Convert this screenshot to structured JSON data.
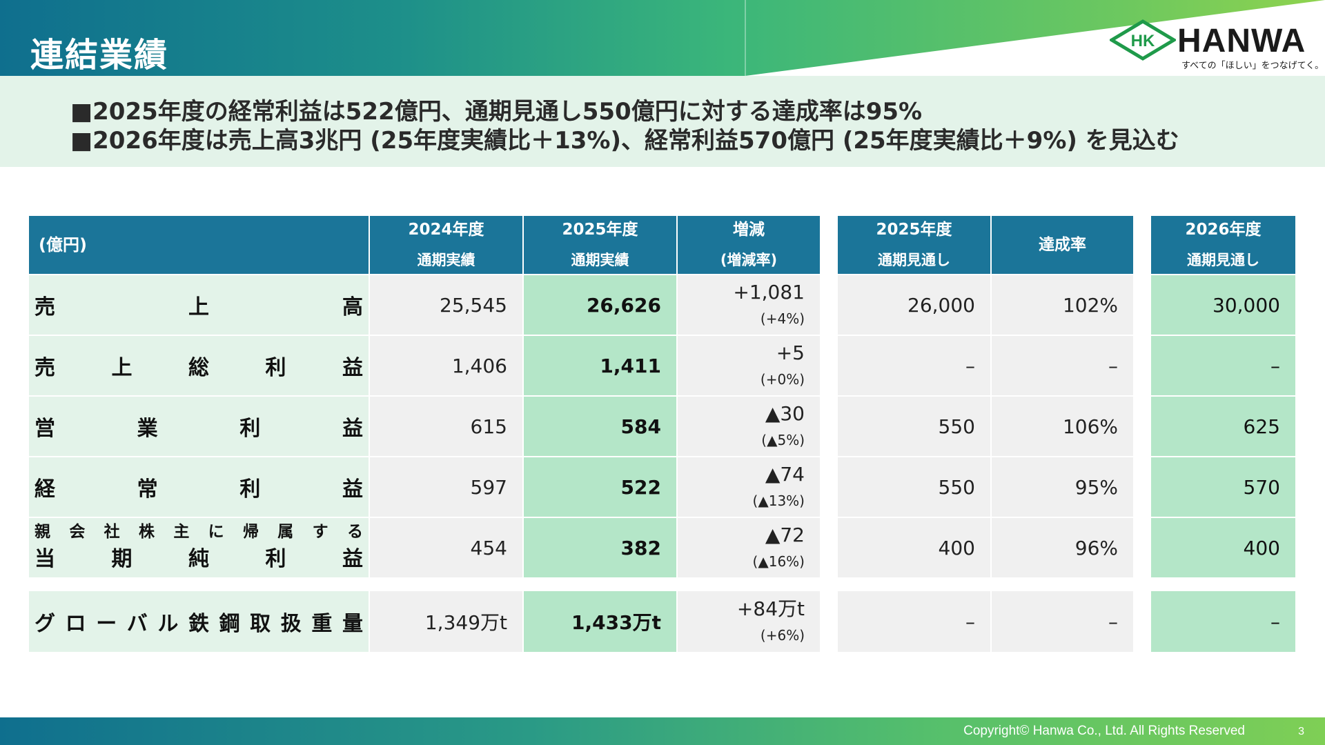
{
  "header": {
    "title": "連結業績",
    "logo_mark": "HK",
    "logo_name": "HANWA",
    "logo_tagline": "すべての「ほしい」をつなげてく。"
  },
  "summary": {
    "line1": "■2025年度の経常利益は522億円、通期見通し550億円に対する達成率は95%",
    "line2": "■2026年度は売上高3兆円 (25年度実績比＋13%)、経常利益570億円 (25年度実績比＋9%) を見込む"
  },
  "table": {
    "unit_label": "(億円)",
    "headers": {
      "fy2024": [
        "2024年度",
        "通期実績"
      ],
      "fy2025": [
        "2025年度",
        "通期実績"
      ],
      "change": [
        "増減",
        "(増減率)"
      ],
      "fy2025_forecast": [
        "2025年度",
        "通期見通し"
      ],
      "achievement": "達成率",
      "fy2026_forecast": [
        "2026年度",
        "通期見通し"
      ]
    },
    "rows": [
      {
        "label": [
          "売",
          "上",
          "高"
        ],
        "fy2024": "25,545",
        "fy2025": "26,626",
        "change": "+1,081",
        "change_pct": "(+4%)",
        "forecast2025": "26,000",
        "achievement": "102%",
        "forecast2026": "30,000"
      },
      {
        "label": [
          "売",
          "上",
          "総",
          "利",
          "益"
        ],
        "fy2024": "1,406",
        "fy2025": "1,411",
        "change": "+5",
        "change_pct": "(+0%)",
        "forecast2025": "–",
        "achievement": "–",
        "forecast2026": "–"
      },
      {
        "label": [
          "営",
          "業",
          "利",
          "益"
        ],
        "fy2024": "615",
        "fy2025": "584",
        "change": "▲30",
        "change_pct": "(▲5%)",
        "forecast2025": "550",
        "achievement": "106%",
        "forecast2026": "625"
      },
      {
        "label": [
          "経",
          "常",
          "利",
          "益"
        ],
        "fy2024": "597",
        "fy2025": "522",
        "change": "▲74",
        "change_pct": "(▲13%)",
        "forecast2025": "550",
        "achievement": "95%",
        "forecast2026": "570"
      },
      {
        "label_small": [
          "親",
          "会",
          "社",
          "株",
          "主",
          "に",
          "帰",
          "属",
          "す",
          "る"
        ],
        "label": [
          "当",
          "期",
          "純",
          "利",
          "益"
        ],
        "fy2024": "454",
        "fy2025": "382",
        "change": "▲72",
        "change_pct": "(▲16%)",
        "forecast2025": "400",
        "achievement": "96%",
        "forecast2026": "400"
      },
      {
        "label": [
          "グ",
          "ロ",
          "ー",
          "バ",
          "ル",
          "鉄",
          "鋼",
          "取",
          "扱",
          "重",
          "量"
        ],
        "fy2024": "1,349万t",
        "fy2025": "1,433万t",
        "change": "+84万t",
        "change_pct": "(+6%)",
        "forecast2025": "–",
        "achievement": "–",
        "forecast2026": "–"
      }
    ]
  },
  "footer": {
    "copyright": "Copyright© Hanwa Co., Ltd. All Rights Reserved",
    "page": "3"
  },
  "colors": {
    "header_blue": "#1b7599",
    "label_bg": "#e3f3e9",
    "highlight_green": "#b4e6c8",
    "value_bg": "#f0f0f0"
  }
}
